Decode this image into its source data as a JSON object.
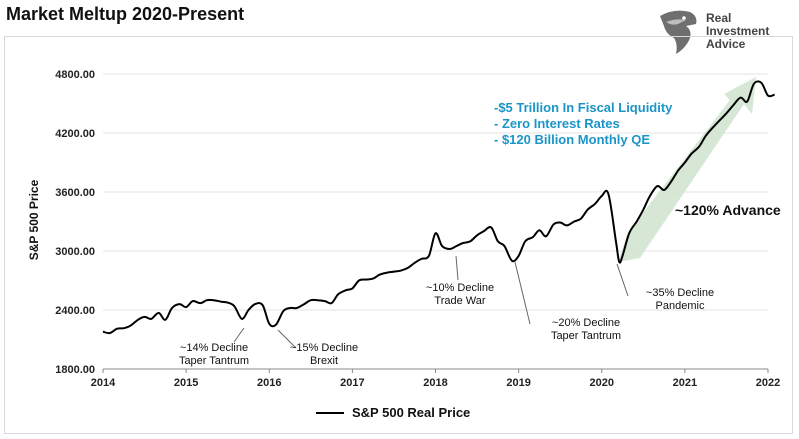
{
  "title": "Market Meltup 2020-Present",
  "logo": {
    "line1": "Real",
    "line2": "Investment",
    "line3": "Advice",
    "icon": "eagle-head-icon"
  },
  "legend": {
    "label": "S&P 500 Real Price",
    "color": "#000000"
  },
  "callout": {
    "lines": [
      "-$5 Trillion In Fiscal Liquidity",
      "- Zero Interest Rates",
      "- $120 Billion Monthly QE"
    ],
    "color": "#1b95c9"
  },
  "advance_label": "~120% Advance",
  "arrow_color": "#cfe3cf",
  "annotations": [
    {
      "lines": [
        "~14% Decline",
        "Taper Tantrum"
      ]
    },
    {
      "lines": [
        "~15% Decline",
        "Brexit"
      ]
    },
    {
      "lines": [
        "~10% Decline",
        "Trade War"
      ]
    },
    {
      "lines": [
        "~20% Decline",
        "Taper Tantrum"
      ]
    },
    {
      "lines": [
        "~35% Decline",
        "Pandemic"
      ]
    }
  ],
  "chart_data": {
    "type": "line",
    "title": "Market Meltup 2020-Present",
    "ylabel": "S&P 500 Price",
    "xlabel": "",
    "ylim": [
      1800,
      4800
    ],
    "xlim": [
      2014,
      2022
    ],
    "yticks": [
      "1800.00",
      "2400.00",
      "3000.00",
      "3600.00",
      "4200.00",
      "4800.00"
    ],
    "xticks": [
      "2014",
      "2015",
      "2016",
      "2017",
      "2018",
      "2019",
      "2020",
      "2021",
      "2022"
    ],
    "grid": "horizontal",
    "legend_position": "bottom",
    "series": [
      {
        "name": "S&P 500 Real Price",
        "color": "#000000",
        "points": [
          [
            2014.0,
            2180
          ],
          [
            2014.08,
            2165
          ],
          [
            2014.17,
            2210
          ],
          [
            2014.25,
            2215
          ],
          [
            2014.33,
            2240
          ],
          [
            2014.42,
            2300
          ],
          [
            2014.5,
            2330
          ],
          [
            2014.58,
            2310
          ],
          [
            2014.67,
            2370
          ],
          [
            2014.75,
            2300
          ],
          [
            2014.83,
            2420
          ],
          [
            2014.92,
            2460
          ],
          [
            2015.0,
            2430
          ],
          [
            2015.08,
            2490
          ],
          [
            2015.17,
            2470
          ],
          [
            2015.25,
            2500
          ],
          [
            2015.33,
            2500
          ],
          [
            2015.42,
            2485
          ],
          [
            2015.5,
            2475
          ],
          [
            2015.58,
            2440
          ],
          [
            2015.67,
            2310
          ],
          [
            2015.75,
            2400
          ],
          [
            2015.83,
            2460
          ],
          [
            2015.92,
            2450
          ],
          [
            2016.0,
            2260
          ],
          [
            2016.08,
            2250
          ],
          [
            2016.17,
            2390
          ],
          [
            2016.25,
            2420
          ],
          [
            2016.33,
            2420
          ],
          [
            2016.42,
            2460
          ],
          [
            2016.5,
            2500
          ],
          [
            2016.58,
            2500
          ],
          [
            2016.67,
            2490
          ],
          [
            2016.75,
            2470
          ],
          [
            2016.83,
            2560
          ],
          [
            2016.92,
            2600
          ],
          [
            2017.0,
            2620
          ],
          [
            2017.08,
            2700
          ],
          [
            2017.17,
            2710
          ],
          [
            2017.25,
            2720
          ],
          [
            2017.33,
            2760
          ],
          [
            2017.42,
            2780
          ],
          [
            2017.5,
            2790
          ],
          [
            2017.58,
            2800
          ],
          [
            2017.67,
            2830
          ],
          [
            2017.75,
            2880
          ],
          [
            2017.83,
            2920
          ],
          [
            2017.92,
            2950
          ],
          [
            2018.0,
            3180
          ],
          [
            2018.08,
            3050
          ],
          [
            2018.17,
            3020
          ],
          [
            2018.25,
            3050
          ],
          [
            2018.33,
            3080
          ],
          [
            2018.42,
            3100
          ],
          [
            2018.5,
            3160
          ],
          [
            2018.58,
            3200
          ],
          [
            2018.67,
            3240
          ],
          [
            2018.75,
            3100
          ],
          [
            2018.83,
            3050
          ],
          [
            2018.92,
            2900
          ],
          [
            2019.0,
            2950
          ],
          [
            2019.08,
            3100
          ],
          [
            2019.17,
            3140
          ],
          [
            2019.25,
            3210
          ],
          [
            2019.33,
            3150
          ],
          [
            2019.42,
            3270
          ],
          [
            2019.5,
            3290
          ],
          [
            2019.58,
            3260
          ],
          [
            2019.67,
            3300
          ],
          [
            2019.75,
            3330
          ],
          [
            2019.83,
            3420
          ],
          [
            2019.92,
            3480
          ],
          [
            2020.0,
            3560
          ],
          [
            2020.08,
            3580
          ],
          [
            2020.17,
            3100
          ],
          [
            2020.21,
            2890
          ],
          [
            2020.25,
            2950
          ],
          [
            2020.33,
            3180
          ],
          [
            2020.42,
            3300
          ],
          [
            2020.5,
            3420
          ],
          [
            2020.58,
            3560
          ],
          [
            2020.67,
            3660
          ],
          [
            2020.75,
            3620
          ],
          [
            2020.83,
            3700
          ],
          [
            2020.92,
            3820
          ],
          [
            2021.0,
            3900
          ],
          [
            2021.08,
            3990
          ],
          [
            2021.17,
            4060
          ],
          [
            2021.25,
            4170
          ],
          [
            2021.33,
            4250
          ],
          [
            2021.42,
            4330
          ],
          [
            2021.5,
            4400
          ],
          [
            2021.58,
            4480
          ],
          [
            2021.67,
            4560
          ],
          [
            2021.75,
            4520
          ],
          [
            2021.83,
            4700
          ],
          [
            2021.92,
            4710
          ],
          [
            2022.0,
            4580
          ],
          [
            2022.08,
            4590
          ]
        ]
      }
    ]
  }
}
